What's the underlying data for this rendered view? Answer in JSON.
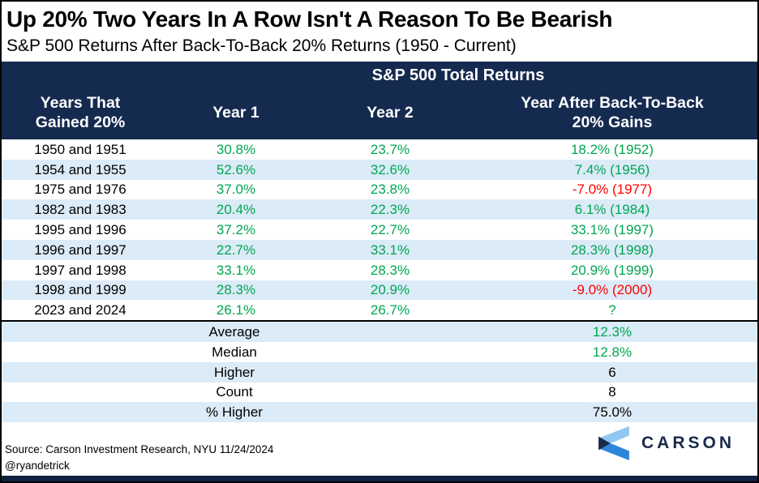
{
  "title": "Up 20% Two Years In A Row Isn't A Reason To Be Bearish",
  "subtitle": "S&P 500 Returns After Back-To-Back 20% Returns (1950 - Current)",
  "table": {
    "group_header": "S&P 500 Total Returns",
    "col_years": "Years That\nGained 20%",
    "col_year1": "Year 1",
    "col_year2": "Year 2",
    "col_after": "Year After Back-To-Back\n20% Gains"
  },
  "chart_data": {
    "type": "table",
    "title": "Up 20% Two Years In A Row Isn't A Reason To Be Bearish",
    "subtitle": "S&P 500 Returns After Back-To-Back 20% Returns (1950 - Current)",
    "group_header": "S&P 500 Total Returns",
    "columns": [
      "Years That Gained 20%",
      "Year 1",
      "Year 2",
      "Year After Back-To-Back 20% Gains"
    ],
    "rows": [
      {
        "years": "1950 and 1951",
        "year1": 30.8,
        "year2": 23.7,
        "after": 18.2,
        "after_year": 1952
      },
      {
        "years": "1954 and 1955",
        "year1": 52.6,
        "year2": 32.6,
        "after": 7.4,
        "after_year": 1956
      },
      {
        "years": "1975 and 1976",
        "year1": 37.0,
        "year2": 23.8,
        "after": -7.0,
        "after_year": 1977
      },
      {
        "years": "1982 and 1983",
        "year1": 20.4,
        "year2": 22.3,
        "after": 6.1,
        "after_year": 1984
      },
      {
        "years": "1995 and 1996",
        "year1": 37.2,
        "year2": 22.7,
        "after": 33.1,
        "after_year": 1997
      },
      {
        "years": "1996 and 1997",
        "year1": 22.7,
        "year2": 33.1,
        "after": 28.3,
        "after_year": 1998
      },
      {
        "years": "1997 and 1998",
        "year1": 33.1,
        "year2": 28.3,
        "after": 20.9,
        "after_year": 1999
      },
      {
        "years": "1998 and 1999",
        "year1": 28.3,
        "year2": 20.9,
        "after": -9.0,
        "after_year": 2000
      },
      {
        "years": "2023 and 2024",
        "year1": 26.1,
        "year2": 26.7,
        "after": null,
        "after_year": null
      }
    ],
    "unknown_after_label": "?",
    "summary": [
      {
        "label": "Average",
        "value": "12.3%",
        "green": true
      },
      {
        "label": "Median",
        "value": "12.8%",
        "green": true
      },
      {
        "label": "Higher",
        "value": "6",
        "green": false
      },
      {
        "label": "Count",
        "value": "8",
        "green": false
      },
      {
        "label": "% Higher",
        "value": "75.0%",
        "green": false
      }
    ]
  },
  "footer": {
    "source": "Source: Carson Investment Research, NYU 11/24/2024",
    "handle": "@ryandetrick",
    "logo_text": "CARSON"
  },
  "colors": {
    "header_navy": "#152A4F",
    "row_stripe_blue": "#DCEBF8",
    "positive_green": "#00A651",
    "negative_red": "#FF0000",
    "text_black": "#000000",
    "logo_light_blue": "#8FC7F0",
    "logo_mid_blue": "#2E86DB",
    "logo_dark_navy": "#1B2A4A",
    "bottom_bar_navy": "#0F2142"
  }
}
